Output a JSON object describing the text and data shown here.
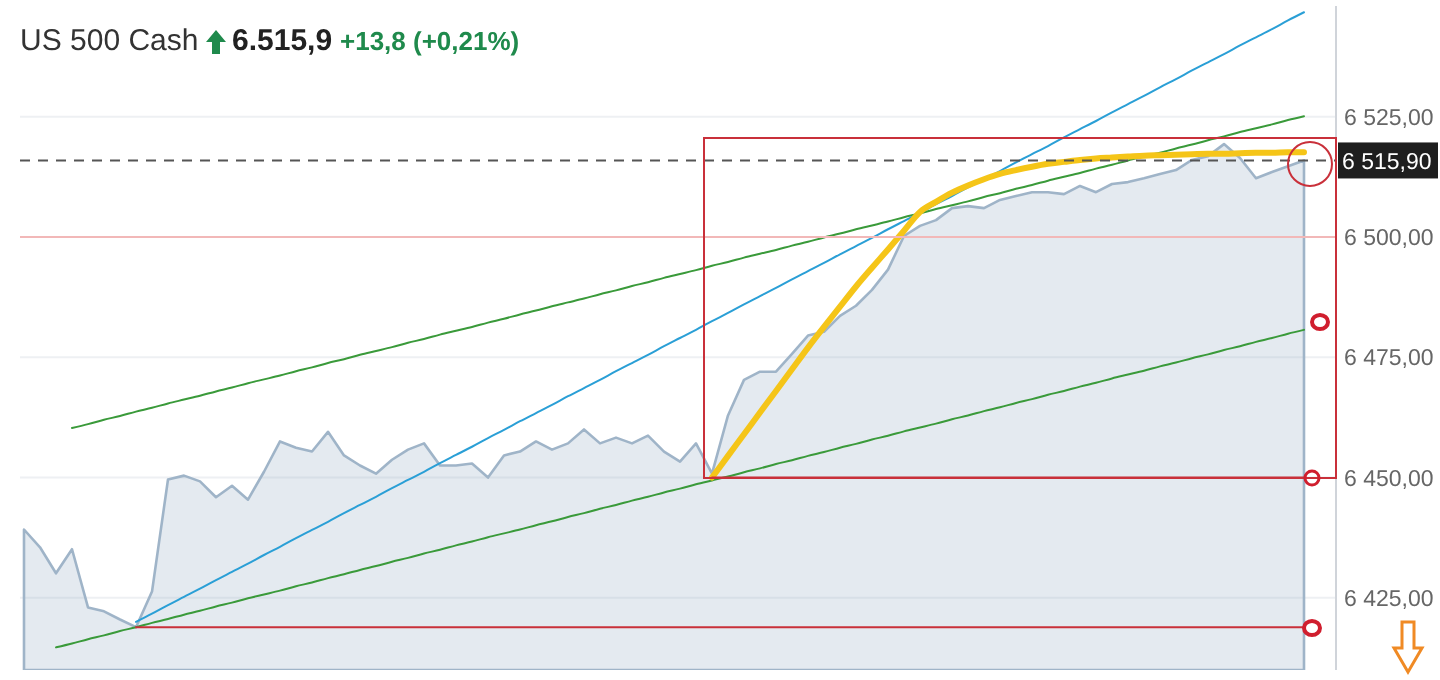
{
  "chart_data": {
    "type": "area",
    "title": "US 500 Cash",
    "annotations": [
      "6.515,9",
      "+13,8 (+0,21%)"
    ],
    "categories": [
      null,
      null,
      null,
      null,
      null,
      null,
      null,
      null,
      null,
      null,
      null,
      null,
      null,
      null,
      null,
      null,
      null,
      null,
      null,
      null,
      null,
      null,
      null,
      null,
      null,
      null,
      null,
      null,
      null,
      null,
      null,
      null,
      null,
      null,
      null,
      null,
      null,
      null,
      null,
      null,
      null,
      null,
      null,
      null,
      null,
      null,
      null,
      null,
      null,
      null,
      null,
      null,
      null,
      null,
      null,
      null,
      null,
      null,
      null,
      null,
      null,
      null,
      null,
      null,
      null,
      null,
      null,
      null,
      null,
      null,
      null,
      null,
      null,
      null,
      null,
      null,
      null,
      null,
      null,
      null,
      null
    ],
    "series": [
      {
        "color": "#9fb4c8",
        "values": [
          6439.2,
          6435.5,
          6430.1,
          6435.1,
          6423.0,
          6422.2,
          6420.5,
          6418.9,
          6426.3,
          6449.6,
          6450.4,
          6449.2,
          6445.9,
          6448.3,
          6445.4,
          6451.2,
          6457.5,
          6456.2,
          6455.4,
          6459.5,
          6454.6,
          6452.5,
          6450.8,
          6453.7,
          6455.8,
          6457.1,
          6452.5,
          6452.5,
          6452.9,
          6450.0,
          6454.6,
          6455.4,
          6457.5,
          6455.8,
          6457.1,
          6460.0,
          6457.1,
          6458.3,
          6457.1,
          6458.7,
          6455.4,
          6453.3,
          6457.1,
          6450.8,
          6462.9,
          6470.3,
          6472.0,
          6472.0,
          6475.7,
          6479.5,
          6480.3,
          6483.6,
          6485.7,
          6489.0,
          6493.2,
          6500.2,
          6502.3,
          6503.5,
          6506.0,
          6506.4,
          6506.0,
          6507.7,
          6508.5,
          6509.3,
          6509.3,
          6508.9,
          6510.6,
          6509.3,
          6511.0,
          6511.4,
          6512.2,
          6513.1,
          6513.9,
          6516.0,
          6516.8,
          6519.3,
          6516.4,
          6512.2,
          6513.5,
          6514.7,
          6515.9
        ]
      },
      {
        "type": "line",
        "color": "#3a9a3a",
        "values": [
          null,
          null,
          null,
          6460.3,
          6461.1,
          6462.0,
          6462.8,
          6463.7,
          6464.5,
          6465.4,
          6466.2,
          6467.0,
          6467.9,
          6468.7,
          6469.6,
          6470.4,
          6471.2,
          6472.1,
          6472.9,
          6473.8,
          6474.6,
          6475.5,
          6476.3,
          6477.1,
          6478.0,
          6478.8,
          6479.7,
          6480.5,
          6481.3,
          6482.2,
          6483.0,
          6483.9,
          6484.7,
          6485.6,
          6486.4,
          6487.2,
          6488.1,
          6488.9,
          6489.8,
          6490.6,
          6491.5,
          6492.3,
          6493.1,
          6494.0,
          6494.8,
          6495.7,
          6496.5,
          6497.3,
          6498.2,
          6499.0,
          6499.9,
          6500.7,
          6501.6,
          6502.4,
          6503.2,
          6504.1,
          6504.9,
          6505.8,
          6506.6,
          6507.4,
          6508.3,
          6509.1,
          6510.0,
          6510.8,
          6511.7,
          6512.5,
          6513.3,
          6514.2,
          6515.0,
          6515.9,
          6516.7,
          6517.5,
          6518.4,
          6519.2,
          6520.1,
          6520.9,
          6521.8,
          6522.6,
          6523.4,
          6524.3,
          6525.1
        ]
      },
      {
        "type": "line",
        "color": "#3a9a3a",
        "values": [
          null,
          null,
          6414.7,
          6415.5,
          6416.4,
          6417.2,
          6418.1,
          6418.9,
          6419.8,
          6420.6,
          6421.5,
          6422.3,
          6423.2,
          6424.0,
          6424.9,
          6425.7,
          6426.5,
          6427.4,
          6428.2,
          6429.1,
          6429.9,
          6430.8,
          6431.6,
          6432.5,
          6433.3,
          6434.2,
          6435.0,
          6435.9,
          6436.7,
          6437.6,
          6438.4,
          6439.2,
          6440.1,
          6440.9,
          6441.8,
          6442.6,
          6443.5,
          6444.3,
          6445.2,
          6446.0,
          6446.9,
          6447.7,
          6448.6,
          6449.4,
          6450.2,
          6451.1,
          6451.9,
          6452.8,
          6453.6,
          6454.5,
          6455.3,
          6456.2,
          6457.0,
          6457.9,
          6458.7,
          6459.6,
          6460.4,
          6461.2,
          6462.1,
          6462.9,
          6463.8,
          6464.6,
          6465.5,
          6466.3,
          6467.2,
          6468.0,
          6468.9,
          6469.7,
          6470.6,
          6471.4,
          6472.2,
          6473.1,
          6473.9,
          6474.8,
          6475.6,
          6476.5,
          6477.3,
          6478.2,
          6479.0,
          6479.9,
          6480.7
        ]
      },
      {
        "type": "line",
        "color": "#2a9fd6",
        "values": [
          null,
          null,
          null,
          null,
          null,
          null,
          null,
          6420.0,
          6421.7,
          6423.5,
          6425.2,
          6426.9,
          6428.7,
          6430.4,
          6432.1,
          6433.9,
          6435.6,
          6437.4,
          6439.1,
          6440.8,
          6442.6,
          6444.3,
          6446.0,
          6447.8,
          6449.5,
          6451.2,
          6453.0,
          6454.7,
          6456.4,
          6458.2,
          6459.9,
          6461.7,
          6463.4,
          6465.1,
          6466.9,
          6468.6,
          6470.3,
          6472.1,
          6473.8,
          6475.5,
          6477.3,
          6479.0,
          6480.7,
          6482.5,
          6484.2,
          6486.0,
          6487.7,
          6489.4,
          6491.2,
          6492.9,
          6494.6,
          6496.4,
          6498.1,
          6499.8,
          6501.6,
          6503.3,
          6505.0,
          6506.8,
          6508.5,
          6510.3,
          6512.0,
          6513.7,
          6515.5,
          6517.2,
          6518.9,
          6520.7,
          6522.4,
          6524.1,
          6525.9,
          6527.6,
          6529.3,
          6531.1,
          6532.8,
          6534.6,
          6536.3,
          6538.0,
          6539.8,
          6541.5,
          6543.2,
          6545.0,
          6546.7
        ]
      },
      {
        "type": "line",
        "color": "#f5c518",
        "values": [
          null,
          null,
          null,
          null,
          null,
          null,
          null,
          null,
          null,
          null,
          null,
          null,
          null,
          null,
          null,
          null,
          null,
          null,
          null,
          null,
          null,
          null,
          null,
          null,
          null,
          null,
          null,
          null,
          null,
          null,
          null,
          null,
          null,
          null,
          null,
          null,
          null,
          null,
          null,
          null,
          null,
          null,
          null,
          6450,
          6454.5,
          6459.0,
          6463.5,
          6468.0,
          6472.5,
          6477.0,
          6481.3,
          6485.5,
          6489.7,
          6493.6,
          6497.4,
          6501.3,
          6505.2,
          6507.3,
          6509.2,
          6510.7,
          6512.0,
          6513.1,
          6513.9,
          6514.6,
          6515.2,
          6515.6,
          6516.0,
          6516.3,
          6516.5,
          6516.7,
          6516.9,
          6517.0,
          6517.1,
          6517.2,
          6517.3,
          6517.3,
          6517.4,
          6517.5,
          6517.5,
          6517.6,
          6517.6
        ]
      },
      {
        "type": "line",
        "color": "#c9303a",
        "values": [
          null,
          null,
          null,
          null,
          null,
          null,
          null,
          null,
          null,
          null,
          null,
          null,
          null,
          null,
          null,
          null,
          null,
          null,
          null,
          null,
          null,
          null,
          null,
          null,
          null,
          null,
          null,
          null,
          null,
          null,
          null,
          null,
          null,
          null,
          null,
          null,
          null,
          null,
          null,
          null,
          null,
          null,
          null,
          6450,
          6450,
          6450,
          6450,
          6450,
          6450,
          6450,
          6450,
          6450,
          6450,
          6450,
          6450,
          6450,
          6450,
          6450,
          6450,
          6450,
          6450,
          6450,
          6450,
          6450,
          6450,
          6450,
          6450,
          6450,
          6450,
          6450,
          6450,
          6450,
          6450,
          6450,
          6450,
          6450,
          6450,
          6450,
          6450,
          6450,
          6450
        ]
      },
      {
        "type": "line",
        "color": "#c9303a",
        "values": [
          null,
          null,
          null,
          null,
          null,
          null,
          null,
          6418.9,
          6418.9,
          6418.9,
          6418.9,
          6418.9,
          6418.9,
          6418.9,
          6418.9,
          6418.9,
          6418.9,
          6418.9,
          6418.9,
          6418.9,
          6418.9,
          6418.9,
          6418.9,
          6418.9,
          6418.9,
          6418.9,
          6418.9,
          6418.9,
          6418.9,
          6418.9,
          6418.9,
          6418.9,
          6418.9,
          6418.9,
          6418.9,
          6418.9,
          6418.9,
          6418.9,
          6418.9,
          6418.9,
          6418.9,
          6418.9,
          6418.9,
          6418.9,
          6418.9,
          6418.9,
          6418.9,
          6418.9,
          6418.9,
          6418.9,
          6418.9,
          6418.9,
          6418.9,
          6418.9,
          6418.9,
          6418.9,
          6418.9,
          6418.9,
          6418.9,
          6418.9,
          6418.9,
          6418.9,
          6418.9,
          6418.9,
          6418.9,
          6418.9,
          6418.9,
          6418.9,
          6418.9,
          6418.9,
          6418.9,
          6418.9,
          6418.9,
          6418.9,
          6418.9,
          6418.9,
          6418.9,
          6418.9,
          6418.9,
          6418.9,
          6418.9
        ]
      }
    ],
    "ylim": [
      6410,
      6548
    ],
    "yticks": [
      {
        "value": 6425,
        "label": "6 425,00"
      },
      {
        "value": 6450,
        "label": "6 450,00"
      },
      {
        "value": 6475,
        "label": "6 475,00"
      },
      {
        "value": 6500,
        "label": "6 500,00"
      },
      {
        "value": 6525,
        "label": "6 525,00"
      }
    ],
    "grid": "y",
    "tick_labels": "y",
    "ref_lines": [
      {
        "axis": "y",
        "value": 6515.9,
        "label": "6 515,90",
        "color": "#555555",
        "line_style": "dashed"
      },
      {
        "axis": "y",
        "value": 6500,
        "color": "#f2b8b8",
        "line_style": "solid"
      }
    ]
  }
}
